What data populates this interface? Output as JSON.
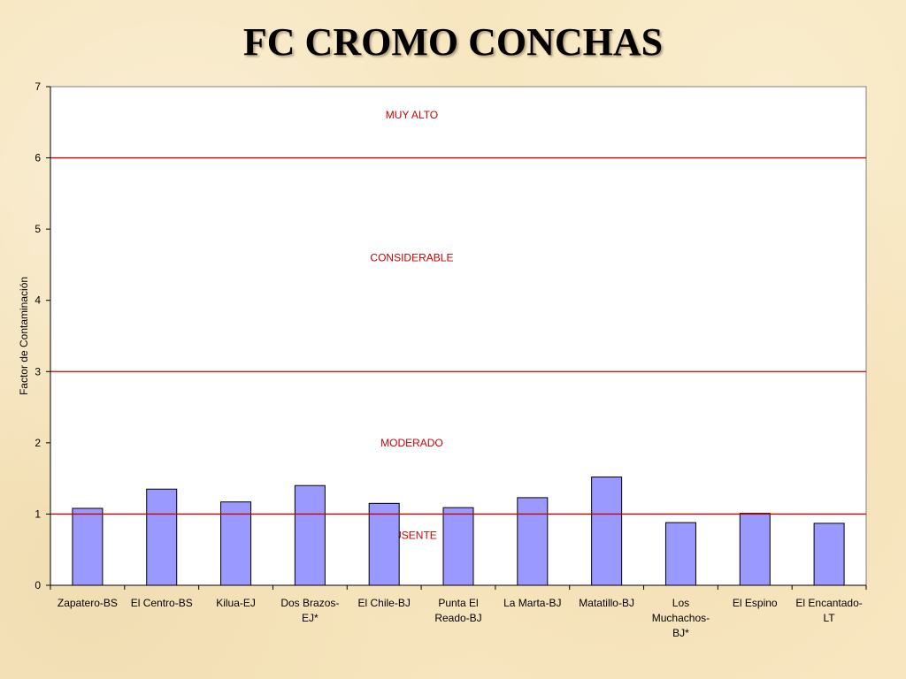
{
  "chart_data": {
    "type": "bar",
    "title": "FC CROMO CONCHAS",
    "xlabel": "",
    "ylabel": "Factor de Contaminación",
    "ylim": [
      0,
      7
    ],
    "yticks": [
      0,
      1,
      2,
      3,
      4,
      5,
      6,
      7
    ],
    "grid": false,
    "categories": [
      [
        "Zapatero-BS"
      ],
      [
        "El Centro-BS"
      ],
      [
        "Kilua-EJ"
      ],
      [
        "Dos Brazos-",
        "EJ*"
      ],
      [
        "El Chile-BJ"
      ],
      [
        "Punta El",
        "Reado-BJ"
      ],
      [
        "La Marta-BJ"
      ],
      [
        "Matatillo-BJ"
      ],
      [
        "Los",
        "Muchachos-",
        "BJ*"
      ],
      [
        "El Espino"
      ],
      [
        "El Encantado-",
        "LT"
      ]
    ],
    "values": [
      1.08,
      1.35,
      1.17,
      1.4,
      1.15,
      1.09,
      1.23,
      1.52,
      0.88,
      1.01,
      0.87
    ],
    "reference_lines": [
      1,
      3,
      6
    ],
    "zones": [
      {
        "label": "MUY ALTO",
        "y": 6.6
      },
      {
        "label": "CONSIDERABLE",
        "y": 4.6
      },
      {
        "label": "MODERADO",
        "y": 2.0
      },
      {
        "label": "AUSENTE",
        "y": 0.7
      }
    ],
    "colors": {
      "bar_fill": "#9999ff",
      "bar_stroke": "#000000",
      "reference_line": "#cc0000",
      "zone_label": "#cc0000",
      "plot_background": "#ffffff",
      "axis": "#808080"
    }
  }
}
